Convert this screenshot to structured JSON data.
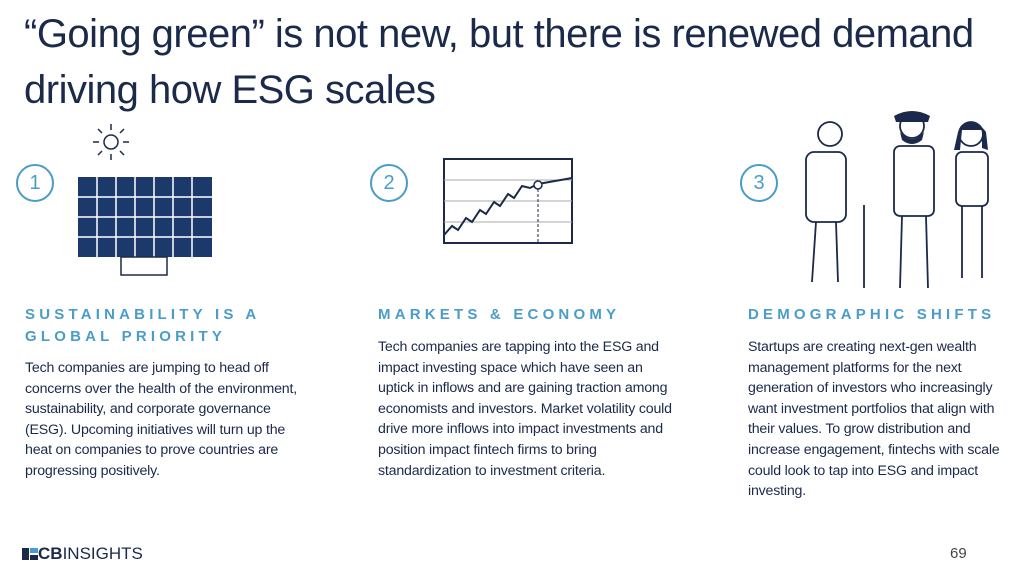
{
  "title": "“Going green” is not new, but there is renewed demand driving how ESG scales",
  "columns": [
    {
      "number": "1",
      "heading": "SUSTAINABILITY IS A GLOBAL PRIORITY",
      "body": "Tech companies are jumping to head off concerns over the health of the environment, sustainability, and corporate governance (ESG). Upcoming initiatives will turn up the heat on companies to prove countries are progressing positively."
    },
    {
      "number": "2",
      "heading": "MARKETS & ECONOMY",
      "body": "Tech companies are tapping into the ESG and impact investing space which have seen an uptick in inflows and are gaining traction among economists and investors. Market volatility could drive more inflows into impact investments and position impact fintech firms to bring standardization to investment criteria."
    },
    {
      "number": "3",
      "heading": "DEMOGRAPHIC SHIFTS",
      "body": "Startups are creating next-gen wealth management platforms for the next generation of investors who increasingly want investment portfolios that align with their values. To grow distribution and increase engagement, fintechs with scale could look to tap into ESG and impact investing."
    }
  ],
  "footer": {
    "logo_mark": "CB",
    "logo_text": "INSIGHTS",
    "page_number": "69"
  }
}
